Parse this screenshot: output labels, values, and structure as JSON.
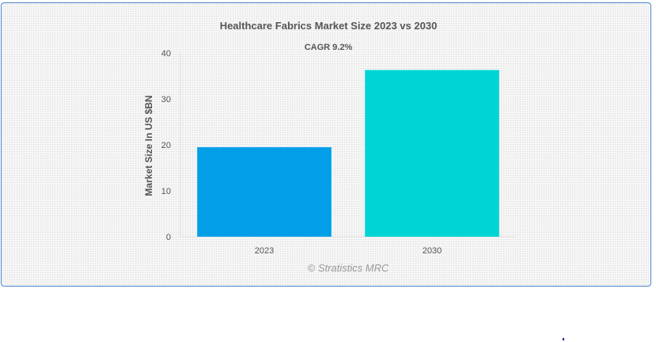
{
  "chart_data": {
    "type": "bar",
    "title": "Healthcare Fabrics Market Size 2023 vs 2030",
    "subtitle": "CAGR 9.2%",
    "xlabel": "",
    "ylabel": "Market Size In US $BN",
    "categories": [
      "2023",
      "2030"
    ],
    "values": [
      19.5,
      36.3
    ],
    "ylim": [
      0,
      40
    ],
    "yticks": [
      0,
      10,
      20,
      30,
      40
    ],
    "colors": [
      "#029fe8",
      "#00d4d4"
    ],
    "grid": false,
    "legend": "none",
    "credit": "© Stratistics MRC"
  }
}
